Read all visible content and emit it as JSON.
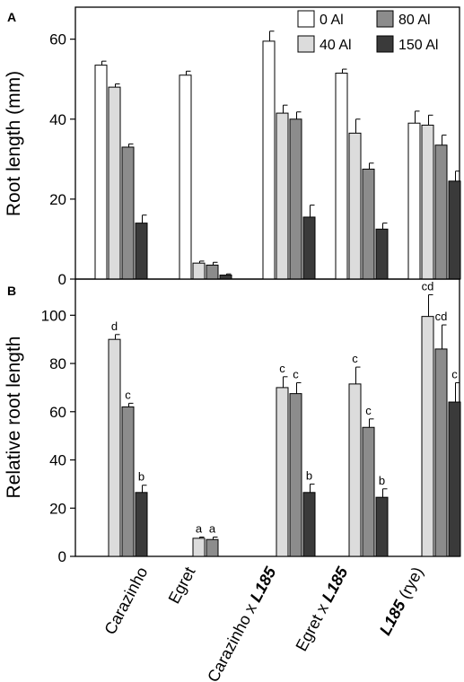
{
  "series_colors": {
    "0 Al": "#ffffff",
    "40 Al": "#dcdcdc",
    "80 Al": "#8c8c8c",
    "150 Al": "#3a3a3a"
  },
  "categories": [
    {
      "name": "Carazinho",
      "bold": "",
      "suffix": ""
    },
    {
      "name": "Egret",
      "bold": "",
      "suffix": ""
    },
    {
      "name": "Carazinho x ",
      "bold": "L185",
      "suffix": ""
    },
    {
      "name": "Egret x ",
      "bold": "L185",
      "suffix": ""
    },
    {
      "name": "",
      "bold": "L185",
      "suffix": " (rye)"
    }
  ],
  "chart_data": [
    {
      "panel": "A",
      "type": "bar",
      "ylabel": "Root length (mm)",
      "ylim": [
        0,
        68
      ],
      "yticks": [
        0,
        20,
        40,
        60
      ],
      "legend": [
        "0 Al",
        "40 Al",
        "80 Al",
        "150 Al"
      ],
      "legend_position": "top-right",
      "series": [
        {
          "name": "0 Al",
          "values": [
            53.5,
            51,
            59.5,
            51.5,
            39
          ],
          "errors": [
            1,
            1,
            2.5,
            1,
            3
          ]
        },
        {
          "name": "40 Al",
          "values": [
            48,
            4,
            41.5,
            36.5,
            38.5
          ],
          "errors": [
            0.8,
            0.5,
            2,
            3.5,
            2.5
          ]
        },
        {
          "name": "80 Al",
          "values": [
            33,
            3.5,
            40,
            27.5,
            33.5
          ],
          "errors": [
            0.8,
            0.7,
            1.8,
            1.5,
            2.5
          ]
        },
        {
          "name": "150 Al",
          "values": [
            14,
            1,
            15.5,
            12.5,
            24.5
          ],
          "errors": [
            2,
            0.3,
            3,
            1.5,
            2.5
          ]
        }
      ]
    },
    {
      "panel": "B",
      "type": "bar",
      "ylabel": "Relative root length",
      "ylim": [
        0,
        115
      ],
      "yticks": [
        0,
        20,
        40,
        60,
        80,
        100
      ],
      "series": [
        {
          "name": "40 Al",
          "values": [
            90,
            7.5,
            70,
            71.5,
            99.5
          ],
          "errors": [
            2,
            0.5,
            4.5,
            7,
            9
          ],
          "letters": [
            "d",
            "a",
            "c",
            "c",
            "cd"
          ]
        },
        {
          "name": "80 Al",
          "values": [
            62,
            7,
            67.5,
            53.5,
            86
          ],
          "errors": [
            1.5,
            1,
            4.5,
            3.5,
            10
          ],
          "letters": [
            "c",
            "a",
            "c",
            "c",
            "cd"
          ]
        },
        {
          "name": "150 Al",
          "values": [
            26.5,
            null,
            26.5,
            24.5,
            64
          ],
          "errors": [
            3,
            null,
            3.5,
            3.5,
            8
          ],
          "letters": [
            "b",
            "",
            "b",
            "b",
            "c"
          ]
        }
      ]
    }
  ]
}
